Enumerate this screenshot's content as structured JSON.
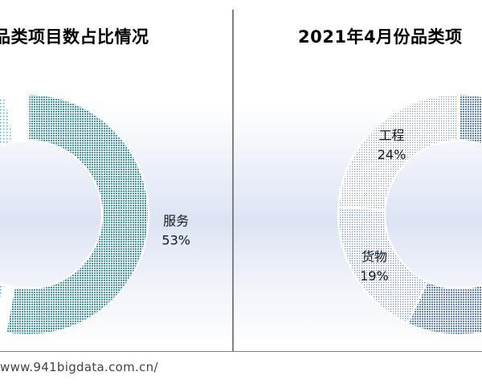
{
  "charts": {
    "left": {
      "title": "品类项目数占比情况",
      "chart_data": {
        "type": "pie",
        "title": "品类项目数占比情况",
        "slices": [
          {
            "label": "服务",
            "percent_label": "53%",
            "value": 53,
            "color": "#4aa5ae",
            "pattern": "dense"
          },
          {
            "label": "",
            "percent_label": "",
            "value": 2,
            "color": "#ffffff",
            "pattern": "none"
          },
          {
            "label": "",
            "percent_label": "",
            "value": 42,
            "color": "#9ecfd4",
            "pattern": "sparse"
          },
          {
            "label": "",
            "percent_label": "",
            "value": 3,
            "color": "#ffffff",
            "pattern": "none"
          }
        ]
      }
    },
    "right": {
      "title": "2021年4月份品类项",
      "chart_data": {
        "type": "pie",
        "title": "2021年4月份品类项",
        "slices": [
          {
            "label": "",
            "percent_label": "",
            "value": 57,
            "color": "#6f8fcc",
            "pattern": "dense"
          },
          {
            "label": "货物",
            "percent_label": "19%",
            "value": 19,
            "color": "#a9bee3",
            "pattern": "light"
          },
          {
            "label": "工程",
            "percent_label": "24%",
            "value": 24,
            "color": "#c3cbd8",
            "pattern": "light"
          }
        ]
      }
    }
  },
  "footer": "www.941bigdata.com.cn/"
}
